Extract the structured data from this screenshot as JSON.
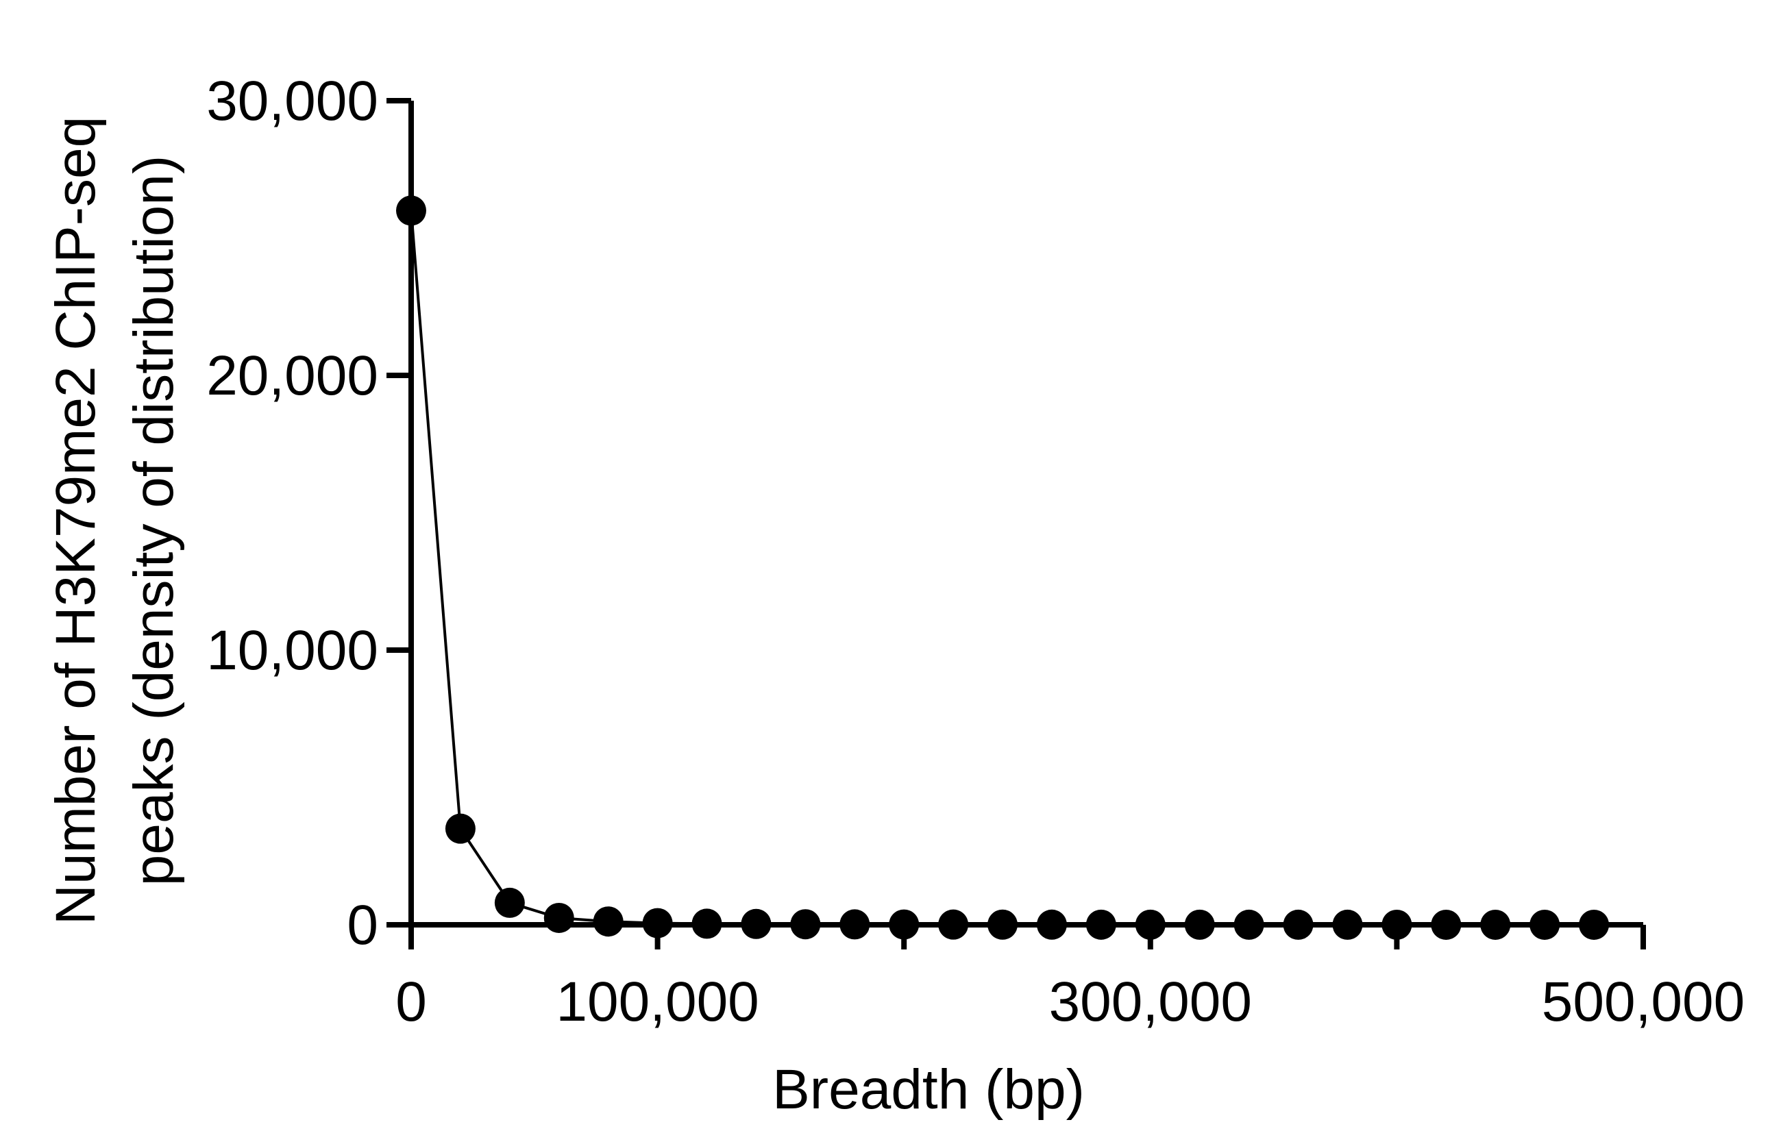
{
  "chart_data": {
    "type": "line",
    "xlabel": "Breadth (bp)",
    "ylabel_line1": "Number of H3K79me2 ChIP-seq",
    "ylabel_line2": "peaks  (density of distribution)",
    "xlim": [
      0,
      500000
    ],
    "ylim": [
      0,
      30000
    ],
    "x_ticks": [
      0,
      100000,
      200000,
      300000,
      400000,
      500000
    ],
    "x_tick_labels": [
      "0",
      "100,000",
      "",
      "300,000",
      "",
      "500,000"
    ],
    "y_ticks": [
      0,
      10000,
      20000,
      30000
    ],
    "y_tick_labels": [
      "0",
      "10,000",
      "20,000",
      "30,000"
    ],
    "grid": false,
    "series": [
      {
        "marker": "filled-circle",
        "color": "#000000",
        "x": [
          0,
          20000,
          40000,
          60000,
          80000,
          100000,
          120000,
          140000,
          160000,
          180000,
          200000,
          220000,
          240000,
          260000,
          280000,
          300000,
          320000,
          340000,
          360000,
          380000,
          400000,
          420000,
          440000,
          460000,
          480000
        ],
        "y": [
          26000,
          3500,
          800,
          250,
          120,
          60,
          40,
          30,
          20,
          15,
          10,
          8,
          6,
          5,
          4,
          3,
          3,
          2,
          2,
          2,
          1,
          1,
          1,
          1,
          1
        ]
      }
    ]
  }
}
